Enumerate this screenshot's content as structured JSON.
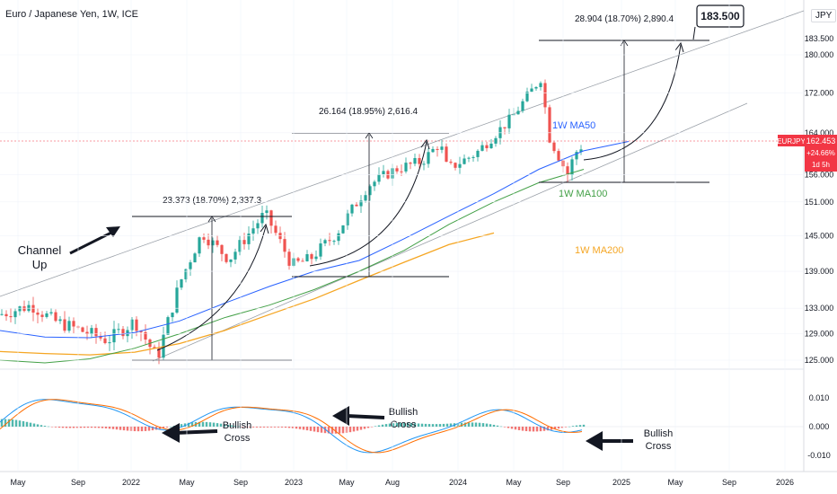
{
  "header": {
    "title": "Euro / Japanese Yen, 1W, ICE",
    "currency": "JPY"
  },
  "price_tag": {
    "symbol": "EURJPY",
    "price": "162.453",
    "change": "+24.66%",
    "countdown": "1d 5h"
  },
  "colors": {
    "up": "#26a69a",
    "down": "#ef5350",
    "ma50": "#2962ff",
    "ma100": "#43a047",
    "ma200": "#f5a623",
    "macd": "#2196f3",
    "signal": "#ff6d00",
    "price_tag_bg": "#f23645"
  },
  "chart_data": [
    {
      "type": "candlestick",
      "title": "Euro / Japanese Yen, 1W, ICE",
      "ylabel": "JPY",
      "y_ticks": [
        "183.500",
        "180.000",
        "172.000",
        "164.000",
        "156.000",
        "151.000",
        "145.000",
        "139.000",
        "133.000",
        "129.000",
        "125.000"
      ],
      "x_ticks": [
        "May",
        "Sep",
        "2022",
        "May",
        "Sep",
        "2023",
        "May",
        "Aug",
        "2024",
        "May",
        "Sep",
        "2025",
        "May",
        "Sep",
        "2026"
      ],
      "annotations": {
        "measure_1": "23.373 (18.70%) 2,337.3",
        "measure_2": "26.164 (18.95%) 2,616.4",
        "measure_3": "28.904 (18.70%) 2,890.4",
        "target_box": "183.500",
        "channel_label": [
          "Channel",
          "Up"
        ],
        "ma50_label": "1W MA50",
        "ma100_label": "1W MA100",
        "ma200_label": "1W MA200"
      },
      "series": [
        {
          "name": "1W MA50",
          "values": [
            129.5,
            128.5,
            128.4,
            129.2,
            131.0,
            133.8,
            136.5,
            139.0,
            140.8,
            144.5,
            148.5,
            152.5,
            157.0,
            160.5,
            162.3
          ]
        },
        {
          "name": "1W MA100",
          "values": [
            125.0,
            124.6,
            125.2,
            126.8,
            129.0,
            131.5,
            133.5,
            136.0,
            139.0,
            142.5,
            147.0,
            151.0,
            154.5,
            157.0
          ]
        },
        {
          "name": "1W MA200",
          "values": [
            126.3,
            126.0,
            125.8,
            126.2,
            127.5,
            129.5,
            132.0,
            134.5,
            137.5,
            140.5,
            143.5,
            145.5
          ]
        }
      ]
    },
    {
      "type": "macd",
      "y_ticks": [
        "0.010",
        "0.000",
        "-0.010"
      ],
      "annotations": {
        "cross_1": [
          "Bullish",
          "Cross"
        ],
        "cross_2": [
          "Bullish",
          "Cross"
        ],
        "cross_3": [
          "Bullish",
          "Cross"
        ]
      }
    }
  ]
}
